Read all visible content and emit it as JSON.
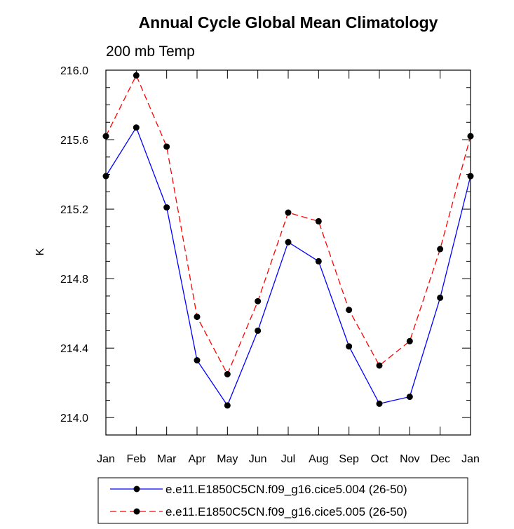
{
  "chart_data": {
    "type": "line",
    "title": "Annual Cycle Global Mean Climatology",
    "subtitle": "200 mb Temp",
    "xlabel": "",
    "ylabel": "K",
    "categories": [
      "Jan",
      "Feb",
      "Mar",
      "Apr",
      "May",
      "Jun",
      "Jul",
      "Aug",
      "Sep",
      "Oct",
      "Nov",
      "Dec",
      "Jan"
    ],
    "ylim": [
      213.9,
      216.0
    ],
    "yticks": [
      214.0,
      214.4,
      214.8,
      215.2,
      215.6,
      216.0
    ],
    "ytick_labels": [
      "214.0",
      "214.4",
      "214.8",
      "215.2",
      "215.6",
      "216.0"
    ],
    "grid": false,
    "legend_position": "bottom",
    "series": [
      {
        "name": "e.e11.E1850C5CN.f09_g16.cice5.004 (26-50)",
        "color": "#0000ff",
        "dash": "solid",
        "values": [
          215.39,
          215.67,
          215.21,
          214.33,
          214.07,
          214.5,
          215.01,
          214.9,
          214.41,
          214.08,
          214.12,
          214.69,
          215.39
        ]
      },
      {
        "name": "e.e11.E1850C5CN.f09_g16.cice5.005 (26-50)",
        "color": "#ff0000",
        "dash": "dashed",
        "values": [
          215.62,
          215.97,
          215.56,
          214.58,
          214.25,
          214.67,
          215.18,
          215.13,
          214.62,
          214.3,
          214.44,
          214.97,
          215.62
        ]
      }
    ]
  }
}
